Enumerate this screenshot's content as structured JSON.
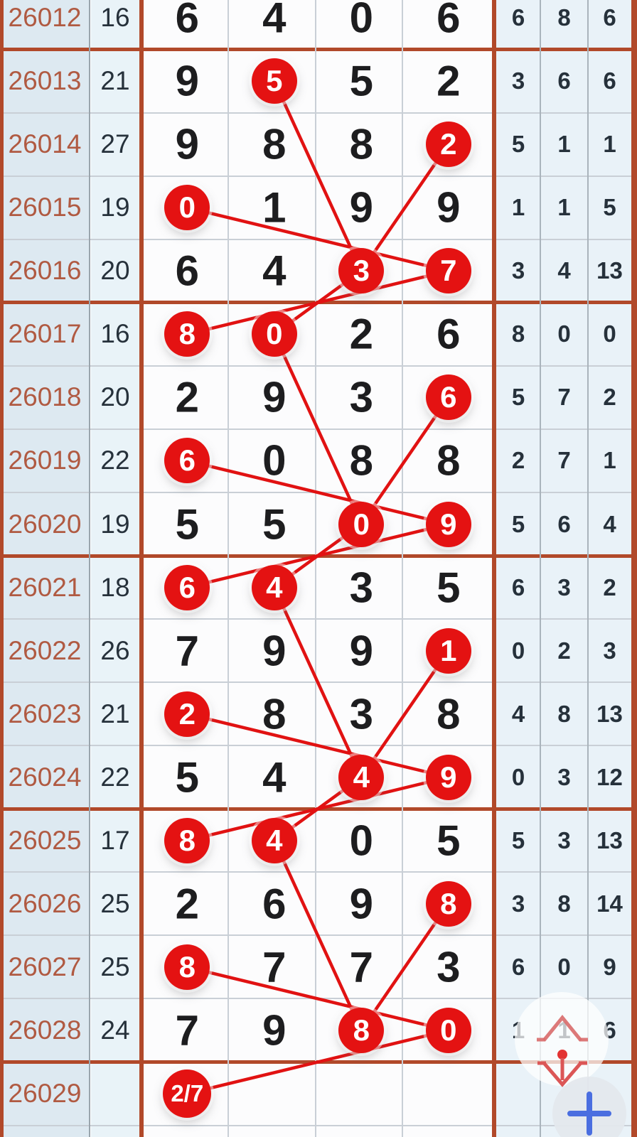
{
  "app": {
    "description_label": "lottery trend chart table",
    "next_issue_prediction": "2/7"
  },
  "chart_data": {
    "type": "table",
    "columns": [
      "period",
      "sum",
      "digit1",
      "digit2",
      "digit3",
      "digit4",
      "stat1",
      "stat2",
      "stat3"
    ],
    "rows": [
      {
        "period": "26012",
        "sum": "16",
        "main": [
          "6",
          "4",
          "0",
          "6"
        ],
        "circled": [
          false,
          false,
          false,
          false
        ],
        "right": [
          "6",
          "8",
          "6"
        ]
      },
      {
        "period": "26013",
        "sum": "21",
        "main": [
          "9",
          "5",
          "5",
          "2"
        ],
        "circled": [
          false,
          true,
          false,
          false
        ],
        "right": [
          "3",
          "6",
          "6"
        ]
      },
      {
        "period": "26014",
        "sum": "27",
        "main": [
          "9",
          "8",
          "8",
          "2"
        ],
        "circled": [
          false,
          false,
          false,
          true
        ],
        "right": [
          "5",
          "1",
          "1"
        ]
      },
      {
        "period": "26015",
        "sum": "19",
        "main": [
          "0",
          "1",
          "9",
          "9"
        ],
        "circled": [
          true,
          false,
          false,
          false
        ],
        "right": [
          "1",
          "1",
          "5"
        ]
      },
      {
        "period": "26016",
        "sum": "20",
        "main": [
          "6",
          "4",
          "3",
          "7"
        ],
        "circled": [
          false,
          false,
          true,
          true
        ],
        "right": [
          "3",
          "4",
          "13"
        ]
      },
      {
        "period": "26017",
        "sum": "16",
        "main": [
          "8",
          "0",
          "2",
          "6"
        ],
        "circled": [
          true,
          true,
          false,
          false
        ],
        "right": [
          "8",
          "0",
          "0"
        ]
      },
      {
        "period": "26018",
        "sum": "20",
        "main": [
          "2",
          "9",
          "3",
          "6"
        ],
        "circled": [
          false,
          false,
          false,
          true
        ],
        "right": [
          "5",
          "7",
          "2"
        ]
      },
      {
        "period": "26019",
        "sum": "22",
        "main": [
          "6",
          "0",
          "8",
          "8"
        ],
        "circled": [
          true,
          false,
          false,
          false
        ],
        "right": [
          "2",
          "7",
          "1"
        ]
      },
      {
        "period": "26020",
        "sum": "19",
        "main": [
          "5",
          "5",
          "0",
          "9"
        ],
        "circled": [
          false,
          false,
          true,
          true
        ],
        "right": [
          "5",
          "6",
          "4"
        ]
      },
      {
        "period": "26021",
        "sum": "18",
        "main": [
          "6",
          "4",
          "3",
          "5"
        ],
        "circled": [
          true,
          true,
          false,
          false
        ],
        "right": [
          "6",
          "3",
          "2"
        ]
      },
      {
        "period": "26022",
        "sum": "26",
        "main": [
          "7",
          "9",
          "9",
          "1"
        ],
        "circled": [
          false,
          false,
          false,
          true
        ],
        "right": [
          "0",
          "2",
          "3"
        ]
      },
      {
        "period": "26023",
        "sum": "21",
        "main": [
          "2",
          "8",
          "3",
          "8"
        ],
        "circled": [
          true,
          false,
          false,
          false
        ],
        "right": [
          "4",
          "8",
          "13"
        ]
      },
      {
        "period": "26024",
        "sum": "22",
        "main": [
          "5",
          "4",
          "4",
          "9"
        ],
        "circled": [
          false,
          false,
          true,
          true
        ],
        "right": [
          "0",
          "3",
          "12"
        ]
      },
      {
        "period": "26025",
        "sum": "17",
        "main": [
          "8",
          "4",
          "0",
          "5"
        ],
        "circled": [
          true,
          true,
          false,
          false
        ],
        "right": [
          "5",
          "3",
          "13"
        ]
      },
      {
        "period": "26026",
        "sum": "25",
        "main": [
          "2",
          "6",
          "9",
          "8"
        ],
        "circled": [
          false,
          false,
          false,
          true
        ],
        "right": [
          "3",
          "8",
          "14"
        ]
      },
      {
        "period": "26027",
        "sum": "25",
        "main": [
          "8",
          "7",
          "7",
          "3"
        ],
        "circled": [
          true,
          false,
          false,
          false
        ],
        "right": [
          "6",
          "0",
          "9"
        ]
      },
      {
        "period": "26028",
        "sum": "24",
        "main": [
          "7",
          "9",
          "8",
          "0"
        ],
        "circled": [
          false,
          false,
          true,
          true
        ],
        "right": [
          "1",
          "1",
          "6"
        ]
      },
      {
        "period": "26029",
        "sum": "",
        "main": [
          "2/7",
          "",
          "",
          ""
        ],
        "circled": [
          true,
          false,
          false,
          false
        ],
        "right": [
          "",
          "",
          ""
        ]
      },
      {
        "period": "",
        "sum": "",
        "main": [
          "",
          "",
          "",
          ""
        ],
        "circled": [
          false,
          false,
          false,
          false
        ],
        "right": [
          "",
          "",
          ""
        ]
      }
    ],
    "trend_segments": [
      [
        1,
        1,
        4,
        2
      ],
      [
        2,
        3,
        4,
        2
      ],
      [
        3,
        0,
        4,
        3
      ],
      [
        4,
        2,
        5,
        1
      ],
      [
        4,
        3,
        5,
        0
      ],
      [
        5,
        1,
        8,
        2
      ],
      [
        6,
        3,
        8,
        2
      ],
      [
        7,
        0,
        8,
        3
      ],
      [
        8,
        2,
        9,
        1
      ],
      [
        8,
        3,
        9,
        0
      ],
      [
        9,
        1,
        12,
        2
      ],
      [
        10,
        3,
        12,
        2
      ],
      [
        11,
        0,
        12,
        3
      ],
      [
        12,
        2,
        13,
        1
      ],
      [
        12,
        3,
        13,
        0
      ],
      [
        13,
        1,
        16,
        2
      ],
      [
        14,
        3,
        16,
        2
      ],
      [
        15,
        0,
        16,
        3
      ],
      [
        16,
        3,
        17,
        0
      ]
    ],
    "group_end_rows": [
      0,
      4,
      8,
      12,
      16
    ]
  },
  "widgets": {
    "scroll_top_icon": "arrow-up",
    "scroll_bottom_icon": "arrow-down",
    "plus_label": "+"
  },
  "colors": {
    "circle_red": "#e41212",
    "line_red": "#e11212",
    "border_orange": "#b1492a",
    "period_text": "#b05a42",
    "dark_text": "#26313b",
    "main_text": "#1d1d1f",
    "period_col_bg": "#dde9f1",
    "sum_col_bg": "#e9f3f8",
    "main_col_bg": "#fcfcfd",
    "right_col_bg": "#e9f2f8",
    "thin_line": "#c9cfd6",
    "plus_blue": "#4a6ee0",
    "arrow_pink": "#d96e6e",
    "arrow_red": "#db5656",
    "dot_red": "#e33333"
  }
}
